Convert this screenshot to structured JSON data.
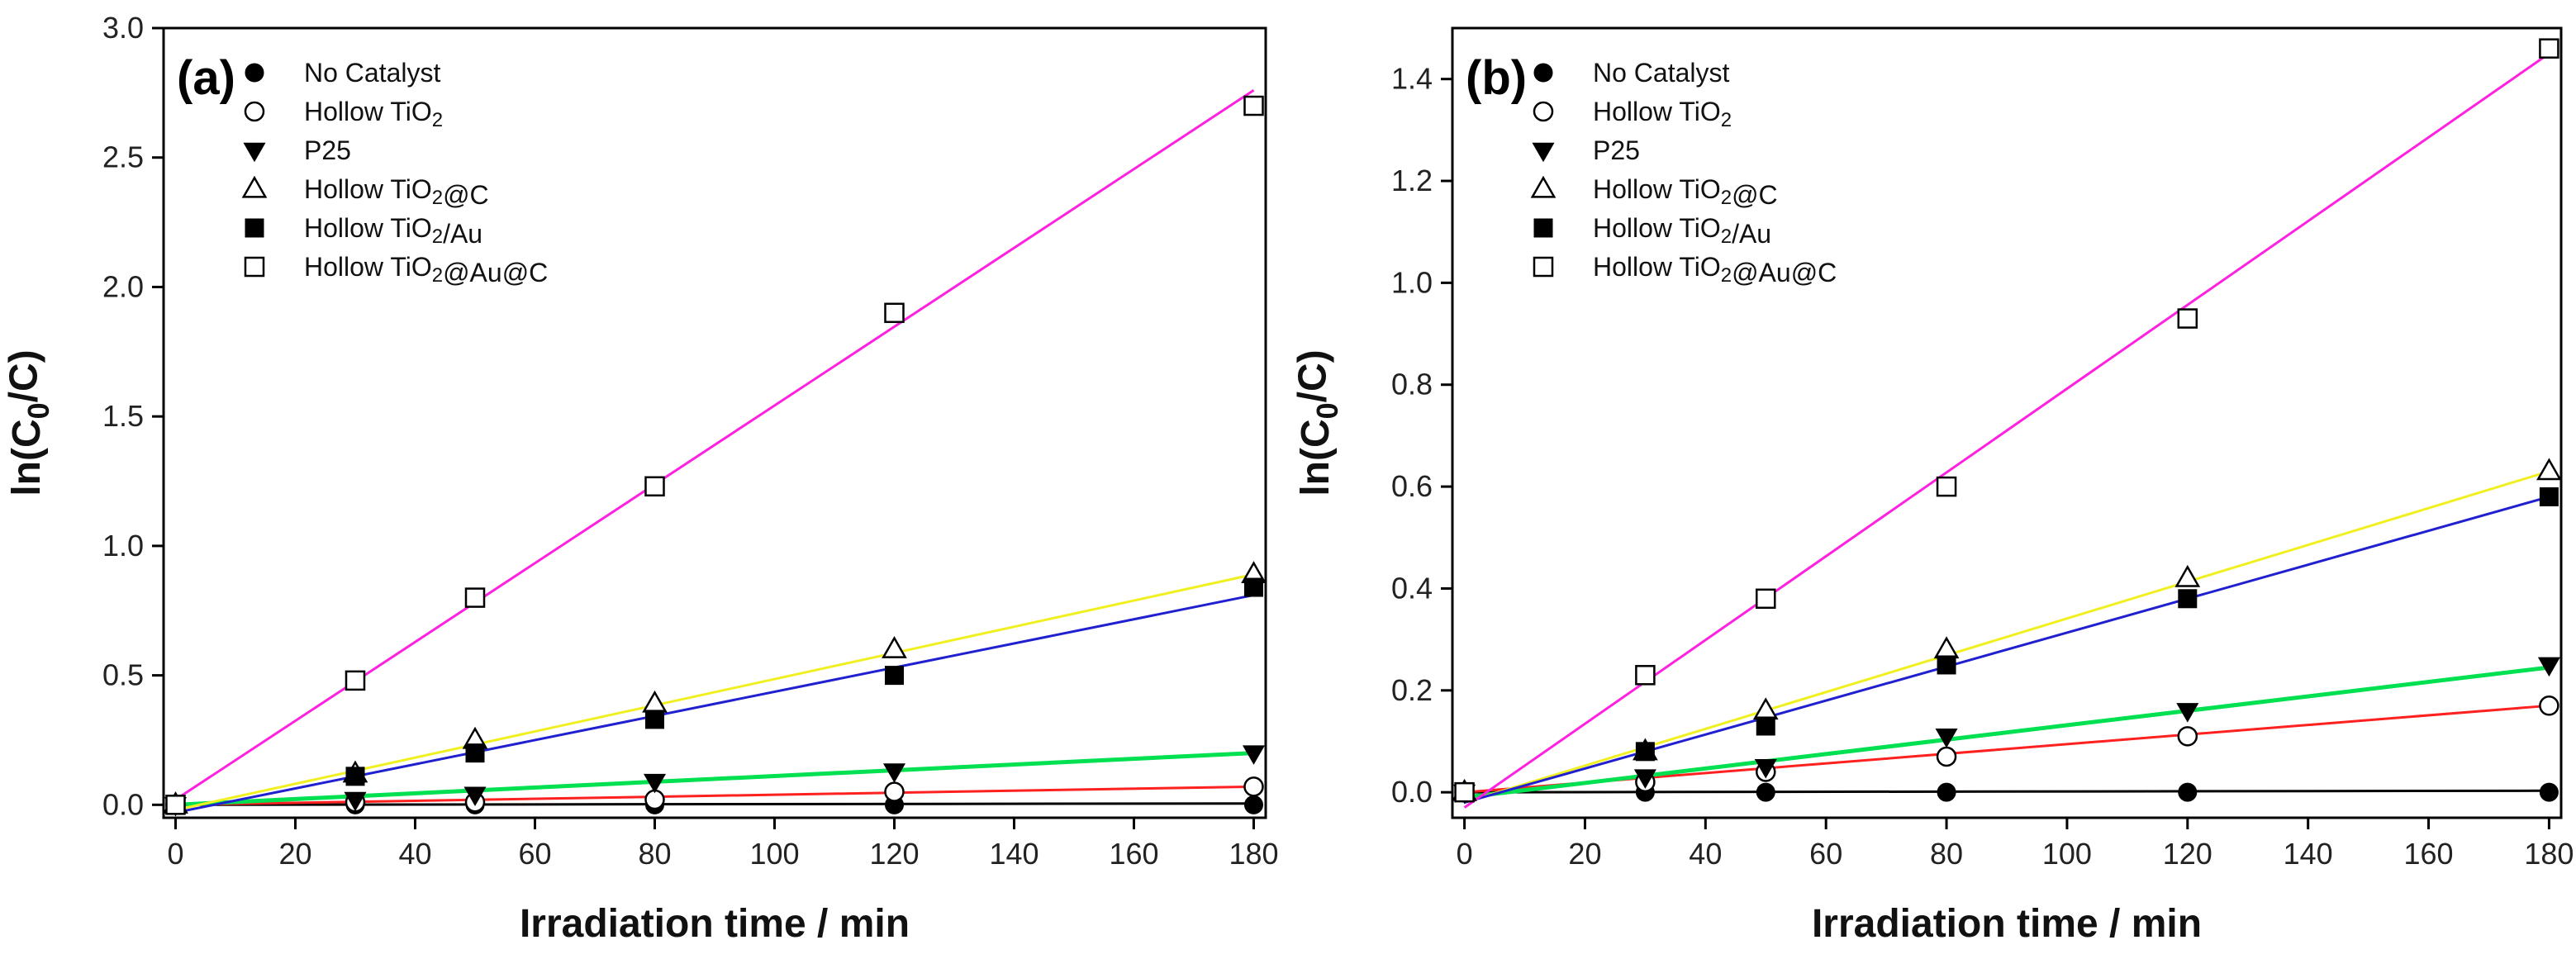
{
  "chart_data": [
    {
      "type": "scatter",
      "panel_label": "(a)",
      "xlabel": "Irradiation time / min",
      "ylabel": "ln(C0/C)",
      "xlim": [
        -2,
        182
      ],
      "ylim": [
        -0.05,
        3.0
      ],
      "xticks": [
        0,
        20,
        40,
        60,
        80,
        100,
        120,
        140,
        160,
        180
      ],
      "yticks": [
        0.0,
        0.5,
        1.0,
        1.5,
        2.0,
        2.5,
        3.0
      ],
      "ytick_labels": [
        "0.0",
        "0.5",
        "1.0",
        "1.5",
        "2.0",
        "2.5",
        "3.0"
      ],
      "legend_position": "top-left",
      "x": [
        0,
        30,
        50,
        80,
        120,
        180
      ],
      "series": [
        {
          "name": "No Catalyst",
          "marker": "circle-filled",
          "values": [
            0,
            0.0,
            0.0,
            0.0,
            0.0,
            0.0
          ],
          "fit": [
            0,
            0.005
          ],
          "fit_color": "#000000"
        },
        {
          "name": "Hollow TiO2",
          "marker": "circle-open",
          "values": [
            0,
            0.01,
            0.01,
            0.02,
            0.05,
            0.07
          ],
          "fit": [
            0,
            0.07
          ],
          "fit_color": "#ff2020"
        },
        {
          "name": "P25",
          "marker": "triangle-down-filled",
          "values": [
            0,
            0.02,
            0.04,
            0.09,
            0.13,
            0.2
          ],
          "fit": [
            0,
            0.2
          ],
          "fit_color": "#00e050"
        },
        {
          "name": "Hollow TiO2@C",
          "marker": "triangle-up-open",
          "values": [
            0,
            0.12,
            0.25,
            0.39,
            0.6,
            0.89
          ],
          "fit": [
            -0.02,
            0.89
          ],
          "fit_color": "#f0f020"
        },
        {
          "name": "Hollow TiO2/Au",
          "marker": "square-filled",
          "values": [
            0,
            0.11,
            0.2,
            0.33,
            0.5,
            0.84
          ],
          "fit": [
            -0.03,
            0.81
          ],
          "fit_color": "#2020d0"
        },
        {
          "name": "Hollow TiO2@Au@C",
          "marker": "square-open",
          "values": [
            0,
            0.48,
            0.8,
            1.23,
            1.9,
            2.7
          ],
          "fit": [
            0.02,
            2.76
          ],
          "fit_color": "#ff20e0"
        }
      ]
    },
    {
      "type": "scatter",
      "panel_label": "(b)",
      "xlabel": "Irradiation time / min",
      "ylabel": "ln(C0/C)",
      "xlim": [
        -2,
        182
      ],
      "ylim": [
        -0.05,
        1.5
      ],
      "xticks": [
        0,
        20,
        40,
        60,
        80,
        100,
        120,
        140,
        160,
        180
      ],
      "yticks": [
        0.0,
        0.2,
        0.4,
        0.6,
        0.8,
        1.0,
        1.2,
        1.4
      ],
      "ytick_labels": [
        "0.0",
        "0.2",
        "0.4",
        "0.6",
        "0.8",
        "1.0",
        "1.2",
        "1.4"
      ],
      "legend_position": "top-left",
      "x": [
        0,
        30,
        50,
        80,
        120,
        180
      ],
      "series": [
        {
          "name": "No Catalyst",
          "marker": "circle-filled",
          "values": [
            0,
            0.0,
            0.0,
            0.0,
            0.0,
            0.0
          ],
          "fit": [
            0,
            0.003
          ],
          "fit_color": "#000000"
        },
        {
          "name": "Hollow TiO2",
          "marker": "circle-open",
          "values": [
            0,
            0.02,
            0.04,
            0.07,
            0.11,
            0.17
          ],
          "fit": [
            0,
            0.17
          ],
          "fit_color": "#ff2020"
        },
        {
          "name": "P25",
          "marker": "triangle-down-filled",
          "values": [
            0,
            0.03,
            0.05,
            0.11,
            0.16,
            0.25
          ],
          "fit": [
            -0.01,
            0.245
          ],
          "fit_color": "#00e050"
        },
        {
          "name": "Hollow TiO2@C",
          "marker": "triangle-up-open",
          "values": [
            0,
            0.08,
            0.16,
            0.28,
            0.42,
            0.63
          ],
          "fit": [
            -0.02,
            0.63
          ],
          "fit_color": "#f0f020"
        },
        {
          "name": "Hollow TiO2/Au",
          "marker": "square-filled",
          "values": [
            0,
            0.08,
            0.13,
            0.25,
            0.38,
            0.58
          ],
          "fit": [
            -0.02,
            0.58
          ],
          "fit_color": "#2020d0"
        },
        {
          "name": "Hollow TiO2@Au@C",
          "marker": "square-open",
          "values": [
            0,
            0.23,
            0.38,
            0.6,
            0.93,
            1.46
          ],
          "fit": [
            -0.03,
            1.45
          ],
          "fit_color": "#ff20e0"
        }
      ]
    }
  ]
}
